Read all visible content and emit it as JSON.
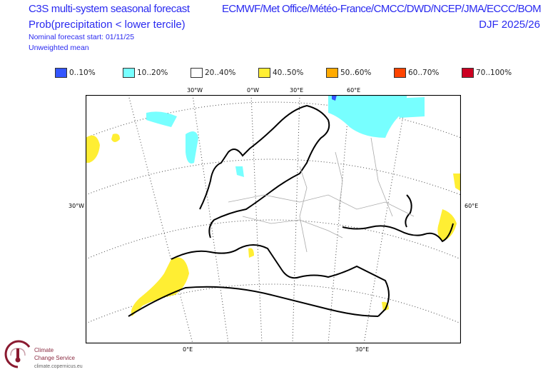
{
  "header": {
    "title": "C3S multi-system seasonal forecast",
    "subtitle": "Prob(precipitation < lower tercile)",
    "start": "Nominal forecast start: 01/11/25",
    "mean": "Unweighted mean",
    "centres": "ECMWF/Met Office/Météo-France/CMCC/DWD/NCEP/JMA/ECCC/BOM",
    "season": "DJF 2025/26"
  },
  "legend": [
    {
      "label": "0..10%",
      "color": "#3355ff"
    },
    {
      "label": "10..20%",
      "color": "#77ffff"
    },
    {
      "label": "20..40%",
      "color": "#ffffff"
    },
    {
      "label": "40..50%",
      "color": "#ffee33"
    },
    {
      "label": "50..60%",
      "color": "#ffaa00"
    },
    {
      "label": "60..70%",
      "color": "#ff4400"
    },
    {
      "label": "70..100%",
      "color": "#cc0022"
    }
  ],
  "axes": {
    "top": [
      "30°W",
      "0°W",
      "30°E",
      "60°E"
    ],
    "left": "30°W",
    "right": "60°E",
    "bottom": [
      "0°E",
      "30°E"
    ]
  },
  "logo": {
    "name1": "Climate",
    "name2": "Change Service",
    "url": "climate.copernicus.eu"
  }
}
